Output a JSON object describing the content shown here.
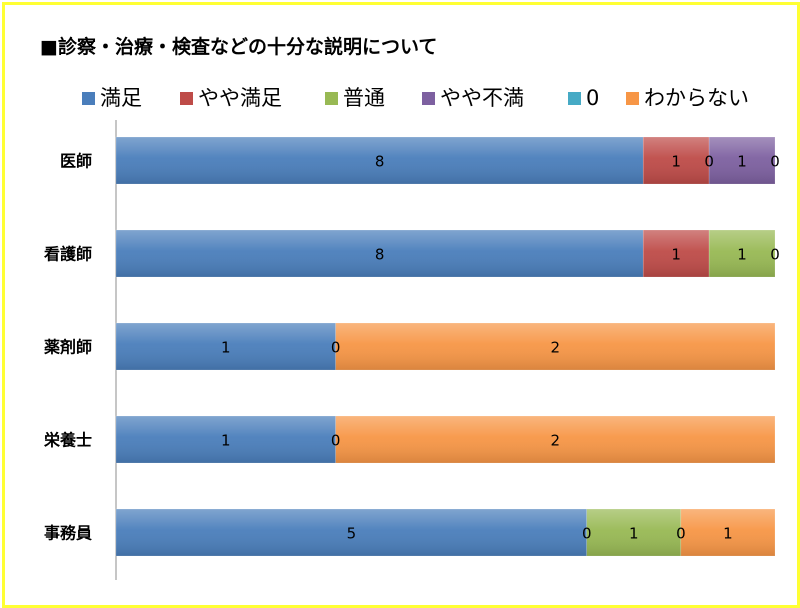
{
  "chart_data": {
    "type": "bar",
    "orientation": "horizontal",
    "stacked": true,
    "percent_stacked": true,
    "title": "■診察・治療・検査などの十分な説明について",
    "xlabel": "",
    "ylabel": "",
    "grid": false,
    "legend_position": "top",
    "categories": [
      "医師",
      "看護師",
      "薬剤師",
      "栄養士",
      "事務員"
    ],
    "series": [
      {
        "name": "満足",
        "color": "#4a7ebb",
        "values": [
          8,
          8,
          1,
          1,
          5
        ]
      },
      {
        "name": "やや満足",
        "color": "#be4b48",
        "values": [
          1,
          1,
          0,
          0,
          0
        ]
      },
      {
        "name": "普通",
        "color": "#98b954",
        "values": [
          0,
          1,
          0,
          0,
          1
        ]
      },
      {
        "name": "やや不満",
        "color": "#7d60a0",
        "values": [
          1,
          0,
          0,
          0,
          0
        ]
      },
      {
        "name": "0",
        "color": "#46aac5",
        "values": [
          0,
          0,
          0,
          0,
          0
        ]
      },
      {
        "name": "わからない",
        "color": "#f79646",
        "values": [
          0,
          0,
          2,
          2,
          1
        ]
      }
    ],
    "data_labels": [
      [
        "8",
        "1",
        "0",
        "1",
        "0",
        null
      ],
      [
        "8",
        "1",
        "1",
        "0",
        null,
        null
      ],
      [
        "1",
        "0",
        null,
        null,
        null,
        "2"
      ],
      [
        "1",
        "0",
        null,
        null,
        null,
        "2"
      ],
      [
        "5",
        "0",
        "1",
        "0",
        null,
        "1"
      ]
    ]
  }
}
